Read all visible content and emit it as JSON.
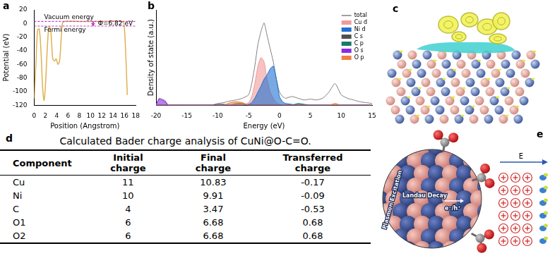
{
  "chart_data": [
    {
      "panel": "a",
      "type": "line",
      "color": "#e0b050",
      "xlabel": "Position (Angstrom)",
      "ylabel": "Potential (eV)",
      "x": [
        0,
        0.3,
        0.6,
        0.9,
        1.2,
        1.5,
        1.75,
        2.0,
        2.3,
        2.6,
        2.9,
        3.1,
        3.3,
        3.6,
        3.9,
        4.2,
        4.5,
        4.8,
        5.0,
        5.3,
        8,
        12,
        15.5,
        15.9,
        16.2,
        16.5
      ],
      "values": [
        -110,
        -60,
        -10,
        -8,
        -40,
        -95,
        -113,
        -90,
        -40,
        -5,
        -8,
        -30,
        -52,
        -55,
        -52,
        -60,
        -55,
        -20,
        0,
        3,
        3,
        3,
        3,
        0,
        -40,
        -105
      ],
      "xlim": [
        0,
        18
      ],
      "xticks": [
        0,
        2,
        4,
        6,
        8,
        10,
        12,
        14,
        16,
        18
      ],
      "ylim": [
        -120,
        20
      ],
      "yticks": [
        -120,
        -100,
        -80,
        -60,
        -40,
        -20,
        0,
        20
      ],
      "grid": false,
      "reference_lines": [
        {
          "label": "Vacuum energy",
          "y": 3,
          "color": "#c040c0"
        },
        {
          "label": "Fermi energy",
          "y": -3.82,
          "color": "#c040c0"
        }
      ],
      "annotations": [
        "Φ=6.82 eV"
      ]
    },
    {
      "panel": "b",
      "type": "line",
      "xlabel": "Energy (eV)",
      "ylabel": "Density of state (a.u.)",
      "x": [
        -20,
        -19.5,
        -19,
        -18.5,
        -18,
        -17,
        -16,
        -15,
        -14,
        -13,
        -12,
        -11,
        -10,
        -9,
        -8,
        -7,
        -6,
        -5,
        -4.5,
        -4,
        -3.5,
        -3,
        -2.5,
        -2,
        -1.5,
        -1,
        -0.5,
        0,
        0.5,
        1,
        2,
        3,
        4,
        5,
        6,
        7,
        8,
        9,
        10,
        11,
        12,
        13,
        14,
        15
      ],
      "series": [
        {
          "name": "total",
          "color": "#808080",
          "values": [
            0,
            8,
            7,
            5,
            0,
            0,
            0,
            0,
            0,
            0,
            0,
            0,
            2,
            3,
            5,
            6,
            8,
            12,
            25,
            45,
            70,
            85,
            95,
            80,
            65,
            50,
            30,
            15,
            10,
            8,
            10,
            8,
            6,
            7,
            6,
            8,
            15,
            25,
            12,
            8,
            6,
            4,
            3,
            2
          ]
        },
        {
          "name": "Cu d",
          "color": "#f09a9a",
          "values": [
            0,
            0,
            0,
            0,
            0,
            0,
            0,
            0,
            0,
            0,
            0,
            0,
            0,
            0,
            0,
            0,
            0,
            3,
            10,
            25,
            45,
            55,
            50,
            30,
            15,
            8,
            3,
            1,
            0,
            0,
            0,
            0,
            0,
            0,
            0,
            0,
            0,
            0,
            0,
            0,
            0,
            0,
            0,
            0
          ]
        },
        {
          "name": "Ni d",
          "color": "#1f70d0",
          "values": [
            0,
            0,
            0,
            0,
            0,
            0,
            0,
            0,
            0,
            0,
            0,
            0,
            0,
            0,
            0,
            0,
            0,
            1,
            3,
            8,
            15,
            22,
            30,
            35,
            42,
            45,
            30,
            10,
            4,
            2,
            1,
            0,
            0,
            0,
            0,
            0,
            0,
            0,
            0,
            0,
            0,
            0,
            0,
            0
          ]
        },
        {
          "name": "C s",
          "color": "#505050",
          "values": [
            0,
            0,
            0,
            0,
            0,
            0,
            0,
            0,
            0,
            0,
            0,
            0,
            1,
            1,
            0,
            0,
            0,
            0,
            0,
            0,
            0,
            0,
            0,
            0,
            0,
            0,
            0,
            0,
            0,
            0,
            0,
            0,
            0,
            0,
            0,
            0,
            0,
            0,
            0,
            0,
            0,
            0,
            0,
            0
          ]
        },
        {
          "name": "C p",
          "color": "#1a7a6a",
          "values": [
            0,
            0,
            0,
            0,
            0,
            0,
            0,
            0,
            0,
            0,
            0,
            0,
            0,
            0,
            0,
            2,
            2,
            0,
            0,
            0,
            0,
            0,
            0,
            0,
            0,
            0,
            0,
            0,
            0,
            0,
            0,
            2,
            1,
            0,
            0,
            0,
            0,
            0,
            0,
            0,
            0,
            0,
            0,
            0
          ]
        },
        {
          "name": "O s",
          "color": "#8a2be2",
          "values": [
            0,
            7,
            6,
            4,
            0,
            0,
            0,
            0,
            0,
            0,
            0,
            0,
            0,
            0,
            0,
            0,
            0,
            0,
            0,
            0,
            0,
            0,
            0,
            0,
            0,
            0,
            0,
            0,
            0,
            0,
            0,
            0,
            0,
            0,
            0,
            0,
            0,
            0,
            0,
            0,
            0,
            0,
            0,
            0
          ]
        },
        {
          "name": "O p",
          "color": "#f08040",
          "values": [
            0,
            0,
            0,
            0,
            0,
            0,
            0,
            0,
            0,
            0,
            0,
            0,
            0,
            0,
            3,
            4,
            3,
            0,
            0,
            0,
            0,
            0,
            0,
            0,
            0,
            0,
            0,
            0,
            0,
            0,
            0,
            0,
            0,
            0,
            0,
            0,
            0,
            2,
            0,
            0,
            0,
            0,
            0,
            0
          ]
        }
      ],
      "xlim": [
        -20,
        15
      ],
      "xticks": [
        -20,
        -15,
        -10,
        -5,
        0,
        5,
        10,
        15
      ],
      "ylim": [
        0,
        110
      ],
      "tick_labels": "x",
      "legend": "top-right",
      "grid": false
    }
  ],
  "panel_c": {
    "panel": "c"
  },
  "table": {
    "panel": "d",
    "title": "Calculated Bader charge analysis of CuNi@O-C=O.",
    "columns": [
      "Component",
      "Initial charge",
      "Final charge",
      "Transferred charge"
    ],
    "rows": [
      [
        "Cu",
        11,
        10.83,
        -0.17
      ],
      [
        "Ni",
        10,
        9.91,
        -0.09
      ],
      [
        "C",
        4,
        3.47,
        -0.53
      ],
      [
        "O1",
        6,
        6.68,
        0.68
      ],
      [
        "O2",
        6,
        6.68,
        0.68
      ]
    ]
  },
  "diagram": {
    "panel": "e",
    "texts": [
      "Plasmon Excitation",
      "Landau Decay",
      "e⁻/h⁺"
    ],
    "field_label": "E"
  }
}
